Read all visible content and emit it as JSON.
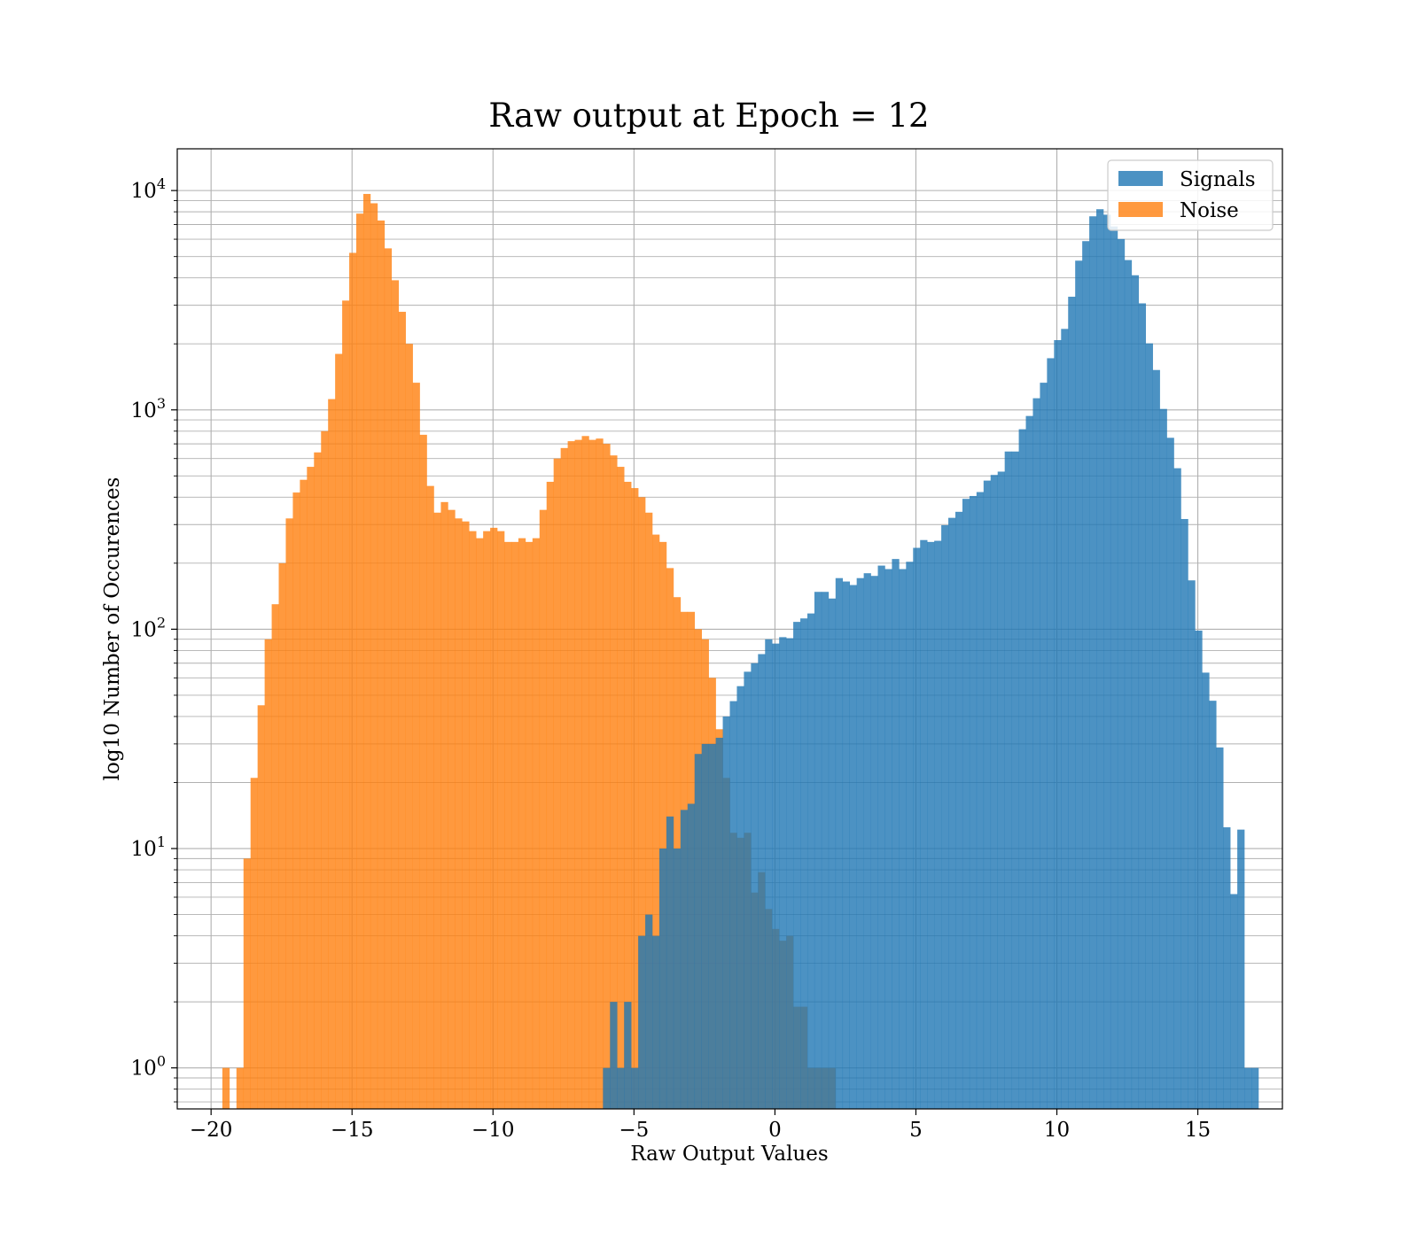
{
  "chart_data": {
    "type": "bar",
    "subtype": "histogram",
    "title": "Raw output at Epoch = 12",
    "xlabel": "Raw Output Values",
    "ylabel": "log10 Number of Occurences",
    "xlim": [
      -21.2,
      18.0
    ],
    "ylim": [
      0.65,
      15500
    ],
    "yscale": "log",
    "grid": true,
    "legend": "top-right",
    "bin_width": 0.25,
    "x_ticks": [
      -20,
      -15,
      -10,
      -5,
      0,
      5,
      10,
      15
    ],
    "x_tick_labels": [
      "−20",
      "−15",
      "−10",
      "−5",
      "0",
      "5",
      "10",
      "15"
    ],
    "y_ticks": [
      1,
      10,
      100,
      1000,
      10000
    ],
    "y_tick_labels": [
      {
        "base": "10",
        "exp": "0"
      },
      {
        "base": "10",
        "exp": "1"
      },
      {
        "base": "10",
        "exp": "2"
      },
      {
        "base": "10",
        "exp": "3"
      },
      {
        "base": "10",
        "exp": "4"
      }
    ],
    "series": [
      {
        "name": "Signals",
        "color": "#1f77b4",
        "opacity": 0.8,
        "x_start": -6.1,
        "values": [
          1,
          2,
          1,
          2,
          1,
          4,
          5,
          4,
          10,
          14,
          10,
          15,
          16,
          27,
          30,
          30,
          32,
          40,
          47,
          55,
          64,
          70,
          77,
          90,
          86,
          92,
          91,
          108,
          112,
          118,
          148,
          148,
          138,
          171,
          165,
          159,
          171,
          180,
          175,
          195,
          188,
          209,
          188,
          203,
          235,
          255,
          250,
          253,
          298,
          322,
          343,
          393,
          405,
          422,
          476,
          505,
          523,
          646,
          646,
          816,
          938,
          1130,
          1330,
          1720,
          2080,
          2340,
          3280,
          4790,
          5880,
          7630,
          8220,
          7760,
          6860,
          6010,
          4820,
          4110,
          3060,
          2010,
          1520,
          1010,
          746,
          542,
          318,
          167,
          98.6,
          63.4,
          47.2,
          28.9,
          12.5,
          6.2,
          12.2,
          1,
          1
        ]
      },
      {
        "name": "Noise",
        "color": "#ff7f0e",
        "opacity": 0.8,
        "x_start": -19.6,
        "values": [
          1,
          0,
          1,
          9,
          21,
          45,
          90,
          130,
          200,
          320,
          420,
          480,
          550,
          640,
          800,
          1120,
          1800,
          3150,
          5200,
          7850,
          9650,
          8750,
          7300,
          5450,
          3900,
          2800,
          2000,
          1330,
          770,
          450,
          340,
          380,
          350,
          320,
          310,
          280,
          260,
          280,
          290,
          280,
          250,
          250,
          260,
          250,
          260,
          350,
          470,
          600,
          670,
          720,
          730,
          760,
          730,
          740,
          700,
          620,
          550,
          470,
          440,
          400,
          340,
          270,
          250,
          190,
          140,
          120,
          120,
          100,
          90,
          60,
          35,
          21,
          11.8,
          11.2,
          11.8,
          6.3,
          7.8,
          5.3,
          4.3,
          3.8,
          4.0,
          1.9,
          1.9,
          1.0,
          1,
          1,
          1
        ]
      }
    ]
  }
}
